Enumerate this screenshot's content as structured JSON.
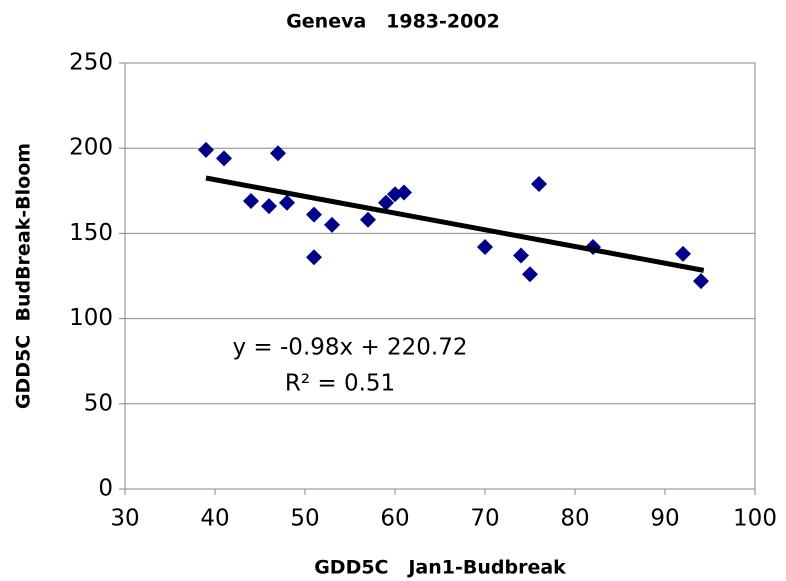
{
  "chart_data": {
    "type": "scatter",
    "title": "Geneva   1983-2002",
    "x_label": "GDD5C   Jan1-Budbreak",
    "y_label": "GDD5C  BudBreak-Bloom",
    "x": [
      39,
      41,
      44,
      46,
      47,
      48,
      51,
      51,
      53,
      57,
      59,
      60,
      61,
      70,
      74,
      75,
      76,
      82,
      92,
      94
    ],
    "values": [
      199,
      194,
      169,
      166,
      197,
      168,
      161,
      136,
      155,
      158,
      168,
      173,
      174,
      142,
      137,
      126,
      179,
      142,
      138,
      122
    ],
    "color": "#00008b",
    "trendline": {
      "x": [
        39,
        94.3
      ],
      "values": [
        182.5,
        128.3
      ],
      "color": "#000000"
    },
    "annotations": [
      "y = -0.98x + 220.72",
      "R² = 0.51"
    ],
    "xlim": [
      30,
      100
    ],
    "xticks": [
      30,
      40,
      50,
      60,
      70,
      80,
      90,
      100
    ],
    "ylim": [
      0,
      250
    ],
    "yticks": [
      0,
      50,
      100,
      150,
      200,
      250
    ],
    "grid": true
  }
}
